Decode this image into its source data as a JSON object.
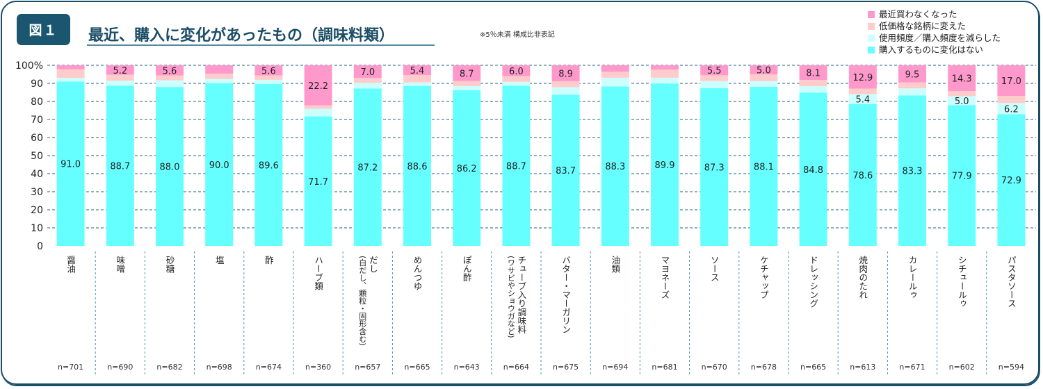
{
  "header": {
    "badge": "図１",
    "title": "最近、購入に変化があったもの（調味料類）",
    "note": "※5％未満 構成比非表記"
  },
  "colors": {
    "stopped": "#ff99cc",
    "cheaper": "#ffcccc",
    "reduced": "#ccffff",
    "nochange": "#66ffff",
    "frame": "#1b4d66",
    "grid": "#8fb0c0"
  },
  "chart_data": {
    "type": "bar",
    "stacked": true,
    "title": "最近、購入に変化があったもの（調味料類）",
    "ylabel": "",
    "xlabel": "",
    "ylim": [
      0,
      100
    ],
    "yticks": [
      "0",
      "10",
      "20",
      "30",
      "40",
      "50",
      "60",
      "70",
      "80",
      "90",
      "100%"
    ],
    "grid": true,
    "legend_position": "top-right",
    "label_threshold": 5.0,
    "categories": [
      [
        "醤油"
      ],
      [
        "味噌"
      ],
      [
        "砂糖"
      ],
      [
        "塩"
      ],
      [
        "酢"
      ],
      [
        "ハーブ類"
      ],
      [
        "だし",
        "(白だし、顆粒・固形含む)"
      ],
      [
        "めんつゆ"
      ],
      [
        "ぽん酢"
      ],
      [
        "チューブ入り調味料",
        "(ワサビやショウガなど)"
      ],
      [
        "バター・マーガリン"
      ],
      [
        "油類"
      ],
      [
        "マヨネーズ"
      ],
      [
        "ソース"
      ],
      [
        "ケチャップ"
      ],
      [
        "ドレッシング"
      ],
      [
        "焼肉のたれ"
      ],
      [
        "カレールゥ"
      ],
      [
        "シチュールゥ"
      ],
      [
        "パスタソース"
      ]
    ],
    "n": [
      "n=701",
      "n=690",
      "n=682",
      "n=698",
      "n=674",
      "n=360",
      "n=657",
      "n=665",
      "n=643",
      "n=664",
      "n=675",
      "n=694",
      "n=681",
      "n=670",
      "n=678",
      "n=665",
      "n=613",
      "n=671",
      "n=602",
      "n=594"
    ],
    "series": [
      {
        "name": "購入するものに変化はない",
        "color": "#66ffff",
        "values": [
          91.0,
          88.7,
          88.0,
          90.0,
          89.6,
          71.7,
          87.2,
          88.6,
          86.2,
          88.7,
          83.7,
          88.3,
          89.9,
          87.3,
          88.1,
          84.8,
          78.6,
          83.3,
          77.9,
          72.9
        ]
      },
      {
        "name": "使用頻度／購入頻度を減らした",
        "color": "#ccffff",
        "values": [
          2.0,
          2.8,
          3.7,
          2.4,
          2.4,
          4.2,
          3.1,
          1.9,
          2.3,
          2.1,
          4.2,
          4.8,
          3.2,
          3.9,
          3.1,
          3.6,
          5.4,
          3.9,
          5.0,
          6.2
        ]
      },
      {
        "name": "低価格な銘柄に変えた",
        "color": "#ffcccc",
        "values": [
          4.8,
          3.3,
          2.7,
          3.0,
          2.4,
          1.9,
          2.7,
          4.1,
          2.8,
          3.2,
          3.2,
          3.3,
          4.5,
          3.3,
          3.8,
          3.5,
          3.1,
          3.3,
          2.8,
          3.9
        ]
      },
      {
        "name": "最近買わなくなった",
        "color": "#ff99cc",
        "values": [
          2.2,
          5.2,
          5.6,
          4.6,
          5.6,
          22.2,
          7.0,
          5.4,
          8.7,
          6.0,
          8.9,
          3.6,
          2.4,
          5.5,
          5.0,
          8.1,
          12.9,
          9.5,
          14.3,
          17.0
        ]
      }
    ],
    "legend": [
      "最近買わなくなった",
      "低価格な銘柄に変えた",
      "使用頻度／購入頻度を減らした",
      "購入するものに変化はない"
    ]
  }
}
